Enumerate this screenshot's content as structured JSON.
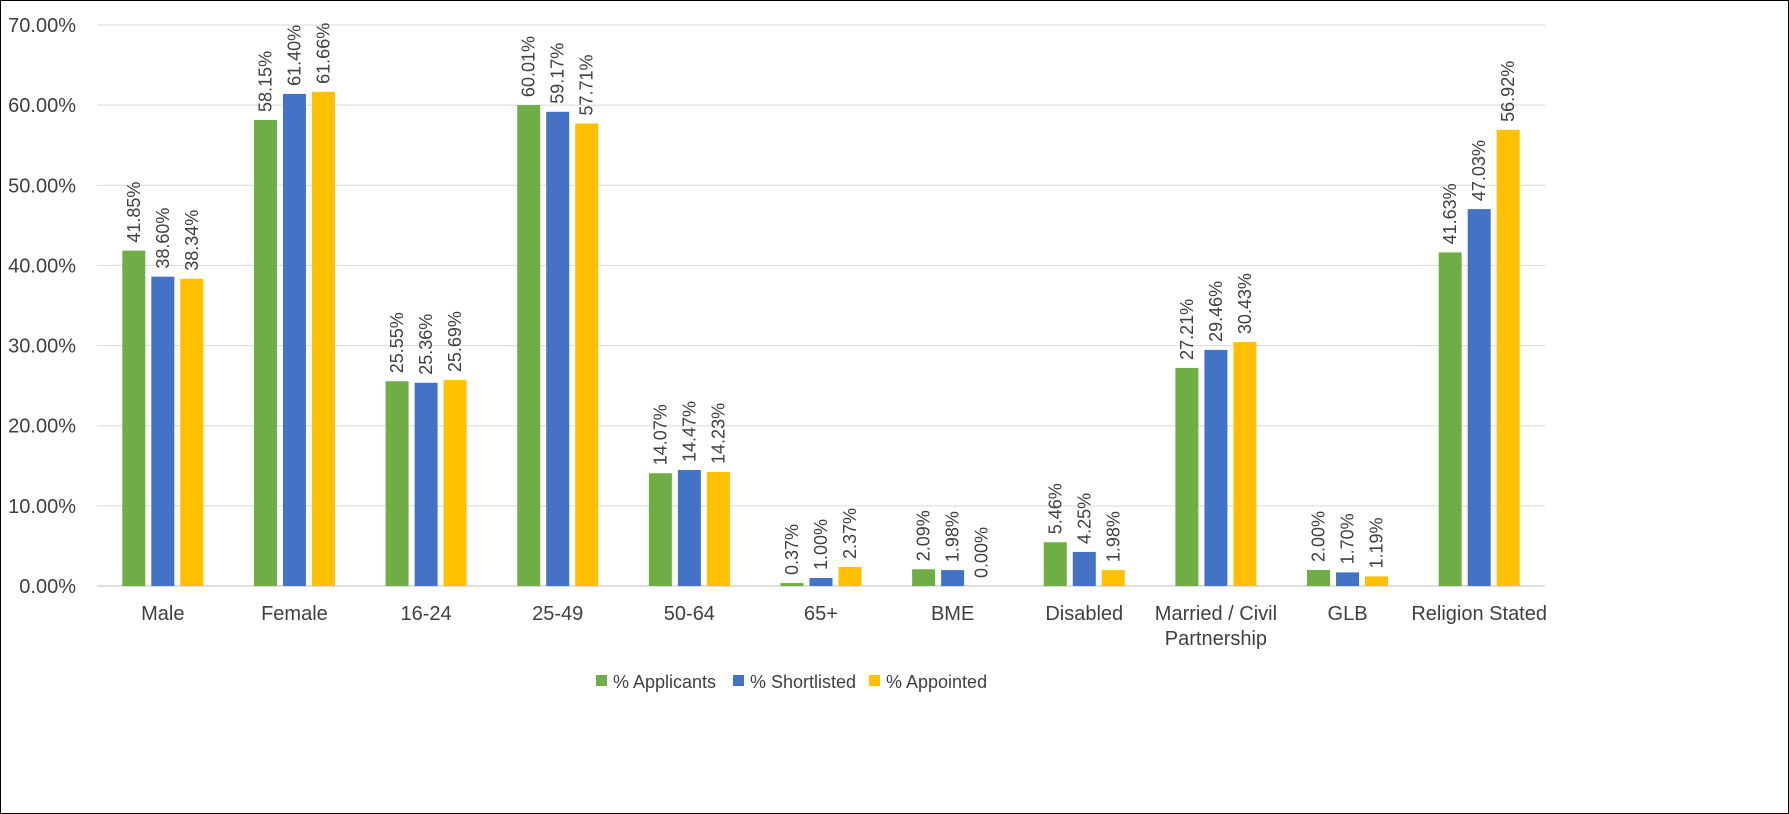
{
  "chart_data": {
    "type": "bar",
    "categories": [
      "Male",
      "Female",
      "16-24",
      "25-49",
      "50-64",
      "65+",
      "BME",
      "Disabled",
      "Married / Civil Partnership",
      "GLB",
      "Religion Stated"
    ],
    "category_lines": [
      [
        "Male"
      ],
      [
        "Female"
      ],
      [
        "16-24"
      ],
      [
        "25-49"
      ],
      [
        "50-64"
      ],
      [
        "65+"
      ],
      [
        "BME"
      ],
      [
        "Disabled"
      ],
      [
        "Married / Civil",
        "Partnership"
      ],
      [
        "GLB"
      ],
      [
        "Religion Stated"
      ]
    ],
    "series": [
      {
        "name": "% Applicants",
        "color": "#70AD47",
        "values": [
          41.85,
          58.15,
          25.55,
          60.01,
          14.07,
          0.37,
          2.09,
          5.46,
          27.21,
          2.0,
          41.63
        ]
      },
      {
        "name": "% Shortlisted",
        "color": "#4472C4",
        "values": [
          38.6,
          61.4,
          25.36,
          59.17,
          14.47,
          1.0,
          1.98,
          4.25,
          29.46,
          1.7,
          47.03
        ]
      },
      {
        "name": "% Appointed",
        "color": "#FFC000",
        "values": [
          38.34,
          61.66,
          25.69,
          57.71,
          14.23,
          2.37,
          0.0,
          1.98,
          30.43,
          1.19,
          56.92
        ]
      }
    ],
    "y_ticks": [
      0,
      10,
      20,
      30,
      40,
      50,
      60,
      70
    ],
    "y_tick_labels": [
      "0.00%",
      "10.00%",
      "20.00%",
      "30.00%",
      "40.00%",
      "50.00%",
      "60.00%",
      "70.00%"
    ],
    "ylim": [
      0,
      70
    ],
    "grid": true,
    "legend_position": "bottom",
    "title": "",
    "xlabel": "",
    "ylabel": ""
  }
}
